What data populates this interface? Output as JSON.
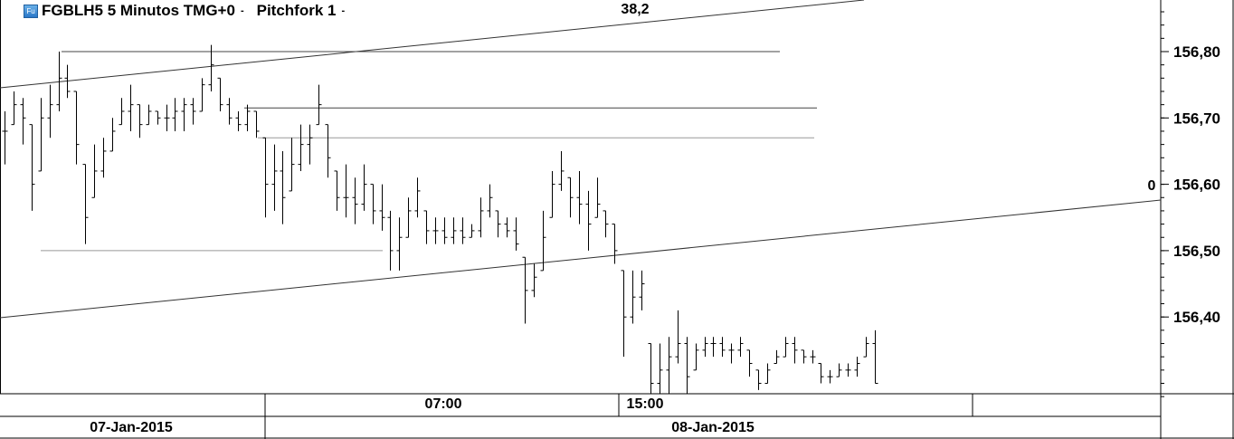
{
  "header": {
    "logo_text": "Fu",
    "instrument_label": "FGBLH5 5 Minutos TMG+0",
    "study_label": "Pitchfork 1",
    "dropdown_glyph": "-"
  },
  "chart_data": {
    "type": "ohlc-bar",
    "series_fields": [
      "high",
      "low",
      "close"
    ],
    "bars": [
      [
        156.71,
        156.63,
        156.68
      ],
      [
        156.74,
        156.69,
        156.72
      ],
      [
        156.73,
        156.66,
        156.7
      ],
      [
        156.69,
        156.56,
        156.6
      ],
      [
        156.73,
        156.62,
        156.7
      ],
      [
        156.75,
        156.67,
        156.72
      ],
      [
        156.8,
        156.71,
        156.76
      ],
      [
        156.78,
        156.73,
        156.74
      ],
      [
        156.74,
        156.63,
        156.66
      ],
      [
        156.63,
        156.51,
        156.55
      ],
      [
        156.66,
        156.58,
        156.62
      ],
      [
        156.67,
        156.61,
        156.65
      ],
      [
        156.7,
        156.65,
        156.68
      ],
      [
        156.73,
        156.69,
        156.71
      ],
      [
        156.75,
        156.68,
        156.72
      ],
      [
        156.72,
        156.67,
        156.69
      ],
      [
        156.72,
        156.69,
        156.71
      ],
      [
        156.71,
        156.69,
        156.7
      ],
      [
        156.72,
        156.68,
        156.7
      ],
      [
        156.73,
        156.68,
        156.71
      ],
      [
        156.73,
        156.68,
        156.72
      ],
      [
        156.73,
        156.69,
        156.71
      ],
      [
        156.76,
        156.71,
        156.75
      ],
      [
        156.81,
        156.74,
        156.78
      ],
      [
        156.76,
        156.71,
        156.72
      ],
      [
        156.73,
        156.69,
        156.7
      ],
      [
        156.71,
        156.68,
        156.69
      ],
      [
        156.72,
        156.68,
        156.71
      ],
      [
        156.71,
        156.67,
        156.68
      ],
      [
        156.67,
        156.55,
        156.6
      ],
      [
        156.66,
        156.56,
        156.62
      ],
      [
        156.65,
        156.54,
        156.58
      ],
      [
        156.67,
        156.59,
        156.63
      ],
      [
        156.69,
        156.62,
        156.66
      ],
      [
        156.69,
        156.63,
        156.67
      ],
      [
        156.75,
        156.69,
        156.72
      ],
      [
        156.69,
        156.61,
        156.64
      ],
      [
        156.62,
        156.56,
        156.58
      ],
      [
        156.63,
        156.55,
        156.58
      ],
      [
        156.61,
        156.54,
        156.57
      ],
      [
        156.63,
        156.56,
        156.6
      ],
      [
        156.6,
        156.54,
        156.56
      ],
      [
        156.6,
        156.53,
        156.55
      ],
      [
        156.56,
        156.47,
        156.5
      ],
      [
        156.55,
        156.47,
        156.52
      ],
      [
        156.58,
        156.52,
        156.56
      ],
      [
        156.61,
        156.55,
        156.59
      ],
      [
        156.56,
        156.51,
        156.53
      ],
      [
        156.55,
        156.51,
        156.53
      ],
      [
        156.55,
        156.51,
        156.52
      ],
      [
        156.55,
        156.51,
        156.53
      ],
      [
        156.55,
        156.51,
        156.52
      ],
      [
        156.54,
        156.52,
        156.53
      ],
      [
        156.58,
        156.52,
        156.56
      ],
      [
        156.6,
        156.55,
        156.58
      ],
      [
        156.56,
        156.52,
        156.54
      ],
      [
        156.55,
        156.52,
        156.53
      ],
      [
        156.55,
        156.5,
        156.51
      ],
      [
        156.49,
        156.39,
        156.44
      ],
      [
        156.48,
        156.43,
        156.46
      ],
      [
        156.56,
        156.47,
        156.52
      ],
      [
        156.62,
        156.55,
        156.6
      ],
      [
        156.65,
        156.59,
        156.62
      ],
      [
        156.61,
        156.55,
        156.58
      ],
      [
        156.62,
        156.54,
        156.57
      ],
      [
        156.59,
        156.5,
        156.54
      ],
      [
        156.61,
        156.55,
        156.57
      ],
      [
        156.56,
        156.52,
        156.54
      ],
      [
        156.54,
        156.48,
        156.5
      ],
      [
        156.47,
        156.34,
        156.4
      ],
      [
        156.47,
        156.39,
        156.43
      ],
      [
        156.47,
        156.41,
        156.45
      ],
      [
        156.36,
        156.28,
        156.3
      ],
      [
        156.36,
        156.28,
        156.32
      ],
      [
        156.37,
        156.28,
        156.34
      ],
      [
        156.41,
        156.33,
        156.36
      ],
      [
        156.37,
        156.28,
        156.31
      ],
      [
        156.36,
        156.32,
        156.35
      ],
      [
        156.37,
        156.34,
        156.36
      ],
      [
        156.37,
        156.34,
        156.36
      ],
      [
        156.37,
        156.34,
        156.35
      ],
      [
        156.36,
        156.33,
        156.35
      ],
      [
        156.37,
        156.34,
        156.36
      ],
      [
        156.35,
        156.31,
        156.33
      ],
      [
        156.32,
        156.29,
        156.3
      ],
      [
        156.33,
        156.3,
        156.32
      ],
      [
        156.35,
        156.33,
        156.34
      ],
      [
        156.37,
        156.34,
        156.36
      ],
      [
        156.37,
        156.33,
        156.35
      ],
      [
        156.35,
        156.33,
        156.34
      ],
      [
        156.35,
        156.33,
        156.34
      ],
      [
        156.33,
        156.3,
        156.31
      ],
      [
        156.32,
        156.3,
        156.31
      ],
      [
        156.33,
        156.31,
        156.32
      ],
      [
        156.33,
        156.31,
        156.32
      ],
      [
        156.34,
        156.31,
        156.33
      ],
      [
        156.37,
        156.34,
        156.36
      ],
      [
        156.38,
        156.3,
        156.3
      ]
    ],
    "y_axis": {
      "ticks": [
        "156,80",
        "156,70",
        "156,60",
        "156,50",
        "156,40"
      ],
      "tick_values": [
        156.8,
        156.7,
        156.6,
        156.5,
        156.4
      ],
      "range": [
        156.28,
        156.875
      ]
    },
    "x_axis": {
      "time_labels": [
        "07:00",
        "15:00"
      ],
      "date_labels": [
        "07-Jan-2015",
        "08-Jan-2015"
      ]
    },
    "horizontal_levels": [
      156.8,
      156.715,
      156.67,
      156.5
    ],
    "annotations": [
      "38,2",
      "0"
    ],
    "colors": {
      "bars": "#000000",
      "levels": "#999999",
      "background": "#ffffff"
    }
  }
}
